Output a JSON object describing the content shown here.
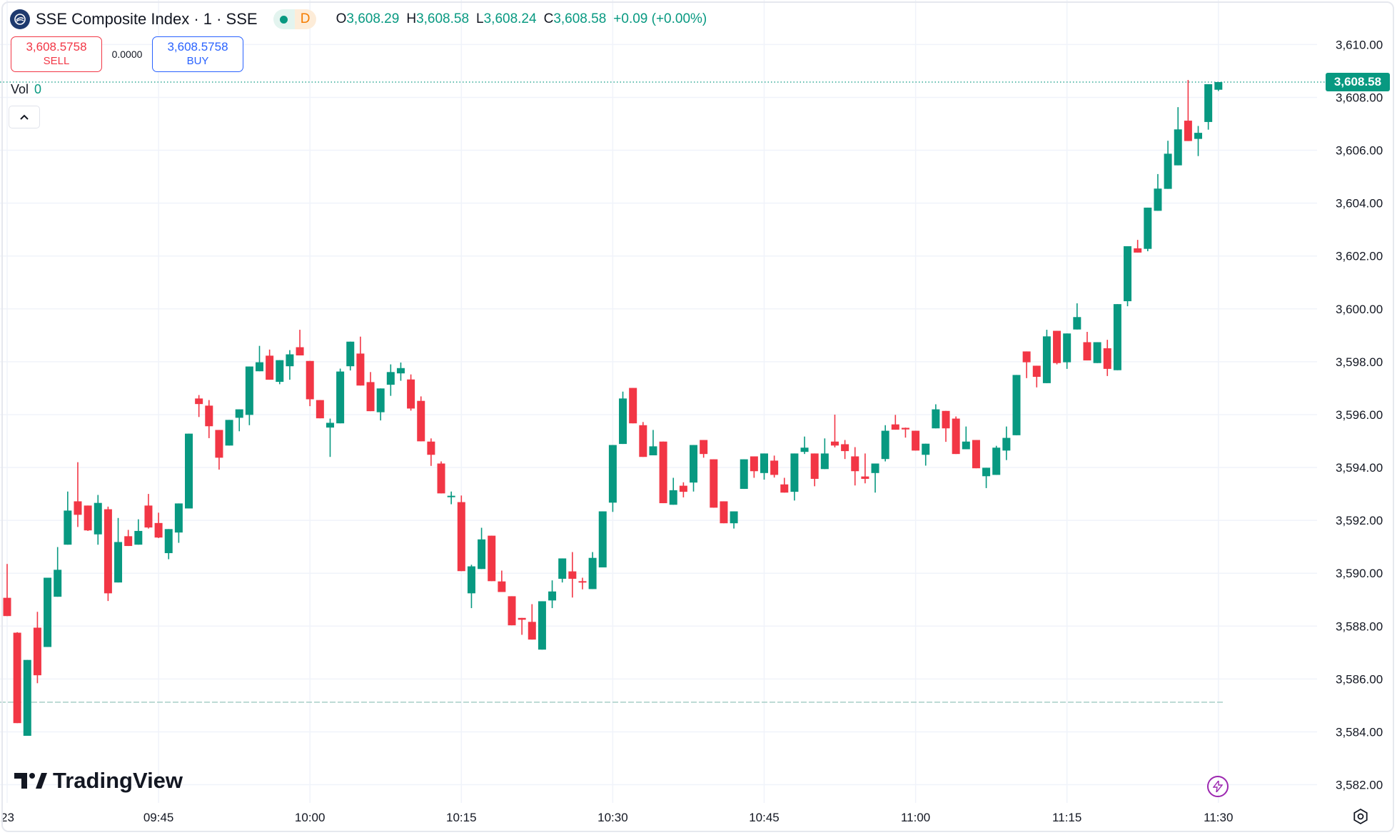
{
  "header": {
    "symbol_title": "SSE Composite Index · 1 · SSE",
    "logo_icon": "sse-logo-icon",
    "market_status_dot": "market-open-dot",
    "data_badge": "D",
    "ohlc": {
      "o_label": "O",
      "o": "3,608.29",
      "h_label": "H",
      "h": "3,608.58",
      "l_label": "L",
      "l": "3,608.24",
      "c_label": "C",
      "c": "3,608.58",
      "change": "+0.09 (+0.00%)"
    }
  },
  "trade": {
    "sell_price": "3,608.5758",
    "sell_label": "SELL",
    "spread": "0.0000",
    "buy_price": "3,608.5758",
    "buy_label": "BUY"
  },
  "volume": {
    "label": "Vol",
    "value": "0"
  },
  "collapse_icon": "chevron-up-icon",
  "branding": {
    "logo_text": "TradingView"
  },
  "icons": {
    "bottom_right": "settings-icon",
    "lightning": "lightning-icon"
  },
  "colors": {
    "up": "#089981",
    "down": "#f23645",
    "sell": "#f23645",
    "buy": "#2962ff",
    "grid": "#f0f3fa"
  },
  "chart_data": {
    "type": "candlestick",
    "title": "",
    "xlabel": "",
    "ylabel": "",
    "ylim": [
      3581.4,
      3611.2
    ],
    "grid": true,
    "y_ticks": [
      "3,582.00",
      "3,584.00",
      "3,586.00",
      "3,588.00",
      "3,590.00",
      "3,592.00",
      "3,594.00",
      "3,596.00",
      "3,598.00",
      "3,600.00",
      "3,602.00",
      "3,604.00",
      "3,606.00",
      "3,608.00",
      "3,610.00"
    ],
    "y_tick_values": [
      3582,
      3584,
      3586,
      3588,
      3590,
      3592,
      3594,
      3596,
      3598,
      3600,
      3602,
      3604,
      3606,
      3608,
      3610
    ],
    "x_ticks": [
      {
        "label": "23",
        "time": "09:30"
      },
      {
        "label": "09:45",
        "time": "09:45"
      },
      {
        "label": "10:00",
        "time": "10:00"
      },
      {
        "label": "10:15",
        "time": "10:15"
      },
      {
        "label": "10:30",
        "time": "10:30"
      },
      {
        "label": "10:45",
        "time": "10:45"
      },
      {
        "label": "11:00",
        "time": "11:00"
      },
      {
        "label": "11:15",
        "time": "11:15"
      },
      {
        "label": "11:30",
        "time": "11:30"
      }
    ],
    "last_price": 3608.58,
    "last_price_label": "3,608.58",
    "prev_close_line": 3585.12,
    "columns": [
      "time",
      "open",
      "high",
      "low",
      "close"
    ],
    "candles": [
      [
        "09:30",
        3589.07,
        3590.35,
        3588.38,
        3588.38
      ],
      [
        "09:31",
        3587.75,
        3587.77,
        3584.33,
        3584.33
      ],
      [
        "09:32",
        3583.85,
        3586.72,
        3583.85,
        3586.72
      ],
      [
        "09:33",
        3587.94,
        3588.54,
        3585.84,
        3586.14
      ],
      [
        "09:34",
        3587.21,
        3589.83,
        3587.21,
        3589.83
      ],
      [
        "09:35",
        3589.11,
        3590.99,
        3589.11,
        3590.13
      ],
      [
        "09:36",
        3591.08,
        3593.09,
        3591.08,
        3592.37
      ],
      [
        "09:37",
        3592.72,
        3594.2,
        3591.75,
        3592.21
      ],
      [
        "09:38",
        3592.56,
        3592.56,
        3591.6,
        3591.62
      ],
      [
        "09:39",
        3591.47,
        3592.96,
        3591.08,
        3592.66
      ],
      [
        "09:40",
        3592.42,
        3592.52,
        3588.95,
        3589.24
      ],
      [
        "09:41",
        3589.65,
        3592.09,
        3589.65,
        3591.18
      ],
      [
        "09:42",
        3591.4,
        3591.64,
        3591.03,
        3591.03
      ],
      [
        "09:43",
        3591.08,
        3592.04,
        3591.08,
        3591.6
      ],
      [
        "09:44",
        3592.56,
        3593.0,
        3591.69,
        3591.73
      ],
      [
        "09:45",
        3591.9,
        3592.29,
        3591.33,
        3591.35
      ],
      [
        "09:46",
        3590.76,
        3591.67,
        3590.53,
        3591.67
      ],
      [
        "09:47",
        3591.54,
        3592.64,
        3591.15,
        3592.64
      ],
      [
        "09:48",
        3592.45,
        3595.28,
        3592.45,
        3595.28
      ],
      [
        "09:49",
        3596.61,
        3596.74,
        3595.91,
        3596.4
      ],
      [
        "09:50",
        3596.34,
        3596.55,
        3595.11,
        3595.56
      ],
      [
        "09:51",
        3595.42,
        3595.42,
        3593.92,
        3594.37
      ],
      [
        "09:52",
        3594.83,
        3595.8,
        3594.83,
        3595.8
      ],
      [
        "09:53",
        3595.88,
        3596.2,
        3595.37,
        3596.2
      ],
      [
        "09:54",
        3595.99,
        3597.82,
        3595.6,
        3597.82
      ],
      [
        "09:55",
        3597.64,
        3598.6,
        3597.64,
        3597.98
      ],
      [
        "09:56",
        3598.23,
        3598.46,
        3597.32,
        3597.32
      ],
      [
        "09:57",
        3597.24,
        3598.06,
        3597.15,
        3598.06
      ],
      [
        "09:58",
        3597.83,
        3598.44,
        3597.32,
        3598.28
      ],
      [
        "09:59",
        3598.55,
        3599.21,
        3598.24,
        3598.24
      ],
      [
        "10:00",
        3598.03,
        3598.03,
        3596.32,
        3596.58
      ],
      [
        "10:01",
        3596.55,
        3596.55,
        3595.86,
        3595.86
      ],
      [
        "10:02",
        3595.51,
        3595.85,
        3594.4,
        3595.69
      ],
      [
        "10:03",
        3595.67,
        3597.74,
        3595.67,
        3597.63
      ],
      [
        "10:04",
        3597.83,
        3598.76,
        3597.67,
        3598.76
      ],
      [
        "10:05",
        3598.31,
        3598.95,
        3597.1,
        3597.1
      ],
      [
        "10:06",
        3597.23,
        3597.61,
        3596.13,
        3596.13
      ],
      [
        "10:07",
        3596.09,
        3596.99,
        3595.78,
        3596.99
      ],
      [
        "10:08",
        3597.13,
        3597.9,
        3596.71,
        3597.61
      ],
      [
        "10:09",
        3597.56,
        3597.97,
        3597.28,
        3597.76
      ],
      [
        "10:10",
        3597.33,
        3597.52,
        3596.15,
        3596.23
      ],
      [
        "10:11",
        3596.52,
        3596.69,
        3594.99,
        3594.99
      ],
      [
        "10:12",
        3594.98,
        3595.1,
        3594.06,
        3594.48
      ],
      [
        "10:13",
        3594.15,
        3594.23,
        3593.02,
        3593.02
      ],
      [
        "10:14",
        3592.88,
        3593.09,
        3592.61,
        3592.93
      ],
      [
        "10:15",
        3592.69,
        3592.94,
        3590.08,
        3590.08
      ],
      [
        "10:16",
        3589.24,
        3590.32,
        3588.68,
        3590.26
      ],
      [
        "10:17",
        3590.16,
        3591.72,
        3590.16,
        3591.28
      ],
      [
        "10:18",
        3591.42,
        3591.42,
        3589.7,
        3589.7
      ],
      [
        "10:19",
        3589.69,
        3590.1,
        3589.29,
        3589.29
      ],
      [
        "10:20",
        3589.13,
        3589.13,
        3588.03,
        3588.03
      ],
      [
        "10:21",
        3588.31,
        3588.31,
        3587.67,
        3588.24
      ],
      [
        "10:22",
        3588.16,
        3588.83,
        3587.49,
        3587.49
      ],
      [
        "10:23",
        3587.11,
        3588.94,
        3587.11,
        3588.94
      ],
      [
        "10:24",
        3588.97,
        3589.73,
        3588.68,
        3589.31
      ],
      [
        "10:25",
        3589.79,
        3590.56,
        3589.65,
        3590.56
      ],
      [
        "10:26",
        3590.07,
        3590.8,
        3589.08,
        3589.79
      ],
      [
        "10:27",
        3589.7,
        3589.83,
        3589.39,
        3589.68
      ],
      [
        "10:28",
        3589.4,
        3590.8,
        3589.4,
        3590.58
      ],
      [
        "10:29",
        3590.22,
        3592.34,
        3590.22,
        3592.34
      ],
      [
        "10:30",
        3592.67,
        3594.85,
        3592.32,
        3594.85
      ],
      [
        "10:31",
        3594.89,
        3596.87,
        3594.89,
        3596.61
      ],
      [
        "10:32",
        3597.01,
        3597.01,
        3595.67,
        3595.67
      ],
      [
        "10:33",
        3595.6,
        3595.72,
        3594.4,
        3594.4
      ],
      [
        "10:34",
        3594.46,
        3595.42,
        3594.46,
        3594.8
      ],
      [
        "10:35",
        3594.98,
        3594.98,
        3592.65,
        3592.65
      ],
      [
        "10:36",
        3592.59,
        3593.61,
        3592.59,
        3593.14
      ],
      [
        "10:37",
        3593.31,
        3593.44,
        3592.87,
        3593.08
      ],
      [
        "10:38",
        3593.43,
        3594.85,
        3593.09,
        3594.85
      ],
      [
        "10:39",
        3595.04,
        3595.04,
        3594.37,
        3594.51
      ],
      [
        "10:40",
        3594.31,
        3594.31,
        3592.48,
        3592.48
      ],
      [
        "10:41",
        3592.72,
        3592.72,
        3591.89,
        3591.89
      ],
      [
        "10:42",
        3591.89,
        3592.34,
        3591.69,
        3592.34
      ],
      [
        "10:43",
        3593.19,
        3594.31,
        3593.19,
        3594.31
      ],
      [
        "10:44",
        3594.42,
        3594.42,
        3593.61,
        3593.86
      ],
      [
        "10:45",
        3593.79,
        3594.53,
        3593.54,
        3594.53
      ],
      [
        "10:46",
        3594.26,
        3594.45,
        3593.62,
        3593.72
      ],
      [
        "10:47",
        3593.36,
        3593.61,
        3593.05,
        3593.05
      ],
      [
        "10:48",
        3593.08,
        3594.53,
        3592.75,
        3594.53
      ],
      [
        "10:49",
        3594.59,
        3595.17,
        3594.51,
        3594.75
      ],
      [
        "10:50",
        3594.53,
        3594.53,
        3593.29,
        3593.57
      ],
      [
        "10:51",
        3593.94,
        3595.1,
        3593.94,
        3594.53
      ],
      [
        "10:52",
        3594.98,
        3596.0,
        3594.76,
        3594.83
      ],
      [
        "10:53",
        3594.88,
        3595.04,
        3594.32,
        3594.62
      ],
      [
        "10:54",
        3594.42,
        3594.77,
        3593.32,
        3593.86
      ],
      [
        "10:55",
        3593.66,
        3594.53,
        3593.4,
        3593.57
      ],
      [
        "10:56",
        3593.79,
        3594.15,
        3593.05,
        3594.15
      ],
      [
        "10:57",
        3594.32,
        3595.6,
        3594.23,
        3595.39
      ],
      [
        "10:58",
        3595.63,
        3595.99,
        3595.43,
        3595.43
      ],
      [
        "10:59",
        3595.5,
        3595.51,
        3595.13,
        3595.44
      ],
      [
        "11:00",
        3595.39,
        3595.39,
        3594.64,
        3594.64
      ],
      [
        "11:01",
        3594.48,
        3594.9,
        3594.07,
        3594.9
      ],
      [
        "11:02",
        3595.48,
        3596.39,
        3595.48,
        3596.2
      ],
      [
        "11:03",
        3596.14,
        3596.14,
        3594.97,
        3595.48
      ],
      [
        "11:04",
        3595.85,
        3595.93,
        3594.51,
        3594.51
      ],
      [
        "11:05",
        3594.69,
        3595.55,
        3594.69,
        3594.98
      ],
      [
        "11:06",
        3595.04,
        3595.04,
        3593.97,
        3593.97
      ],
      [
        "11:07",
        3593.67,
        3593.99,
        3593.22,
        3593.99
      ],
      [
        "11:08",
        3593.72,
        3594.82,
        3593.72,
        3594.75
      ],
      [
        "11:09",
        3594.64,
        3595.55,
        3594.28,
        3595.12
      ],
      [
        "11:10",
        3595.22,
        3597.5,
        3595.22,
        3597.5
      ],
      [
        "11:11",
        3598.39,
        3598.39,
        3597.38,
        3597.98
      ],
      [
        "11:12",
        3597.85,
        3597.85,
        3597.03,
        3597.43
      ],
      [
        "11:13",
        3597.19,
        3599.21,
        3597.19,
        3598.96
      ],
      [
        "11:14",
        3599.17,
        3599.17,
        3597.9,
        3597.95
      ],
      [
        "11:15",
        3597.98,
        3599.07,
        3597.73,
        3599.07
      ],
      [
        "11:16",
        3599.22,
        3600.21,
        3599.22,
        3599.69
      ],
      [
        "11:17",
        3598.74,
        3599.13,
        3598.05,
        3598.05
      ],
      [
        "11:18",
        3597.95,
        3598.74,
        3597.95,
        3598.74
      ],
      [
        "11:19",
        3598.51,
        3598.83,
        3597.46,
        3597.73
      ],
      [
        "11:20",
        3597.68,
        3600.18,
        3597.68,
        3600.18
      ],
      [
        "11:21",
        3600.29,
        3602.37,
        3600.1,
        3602.37
      ],
      [
        "11:22",
        3602.29,
        3602.61,
        3602.13,
        3602.13
      ],
      [
        "11:23",
        3602.27,
        3603.83,
        3602.18,
        3603.83
      ],
      [
        "11:24",
        3603.71,
        3605.1,
        3603.71,
        3604.55
      ],
      [
        "11:25",
        3604.54,
        3606.36,
        3604.54,
        3605.87
      ],
      [
        "11:26",
        3605.43,
        3607.63,
        3605.43,
        3606.79
      ],
      [
        "11:27",
        3607.12,
        3608.66,
        3606.35,
        3606.35
      ],
      [
        "11:28",
        3606.43,
        3606.92,
        3605.78,
        3606.66
      ],
      [
        "11:29",
        3607.07,
        3608.5,
        3606.78,
        3608.5
      ],
      [
        "11:30",
        3608.29,
        3608.58,
        3608.24,
        3608.58
      ]
    ]
  }
}
